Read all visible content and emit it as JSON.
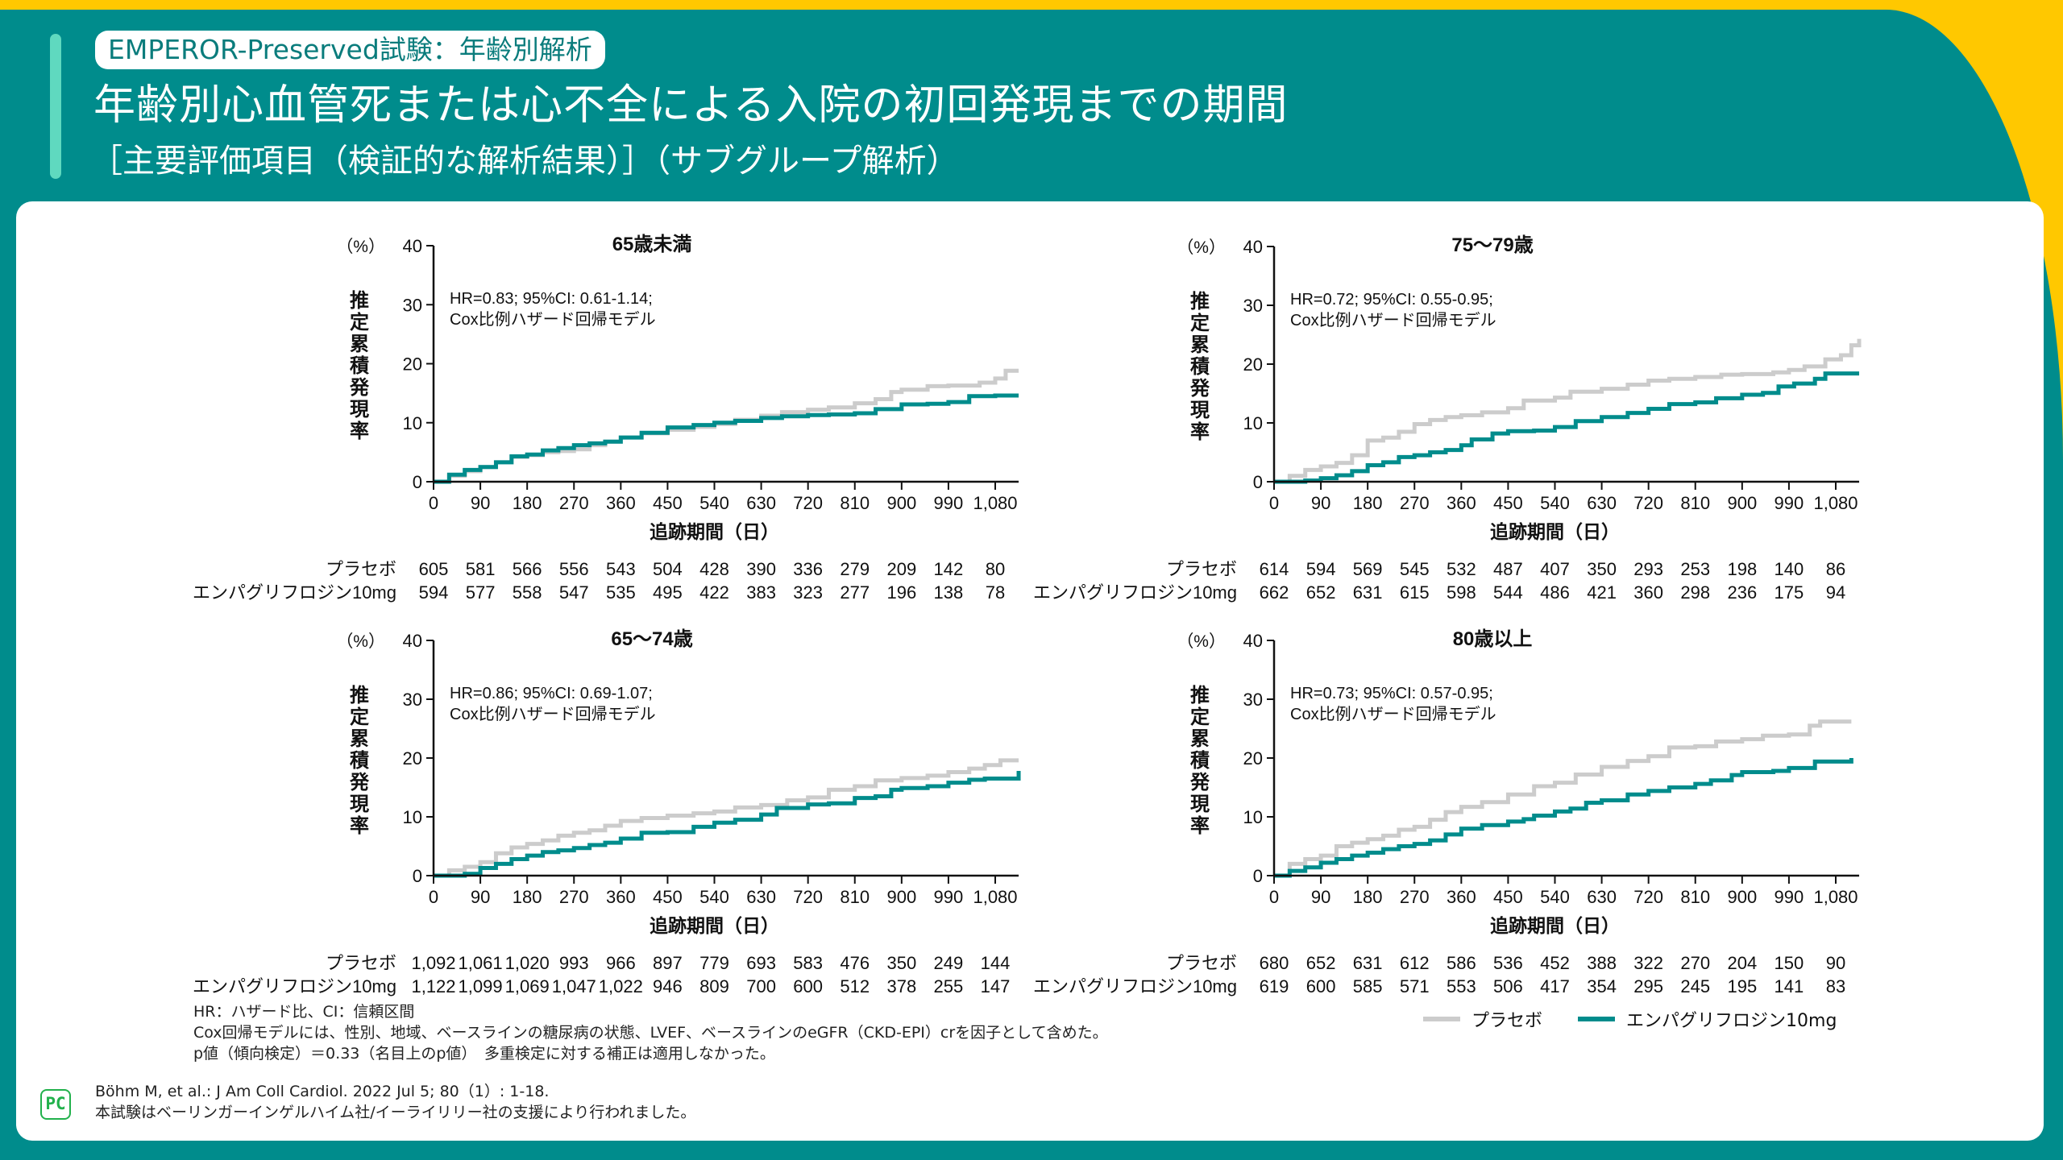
{
  "header": {
    "tag": "EMPEROR-Preserved試験：年齢別解析",
    "title": "年齢別心血管死または心不全による入院の初回発現までの期間",
    "subtitle": "［主要評価項目（検証的な解析結果）］（サブグループ解析）"
  },
  "colors": {
    "teal": "#008c8c",
    "yellow": "#ffc800",
    "placebo": "#cccccc",
    "empagliflozin": "#008c8c"
  },
  "legend": {
    "placebo": "プラセボ",
    "empagliflozin": "エンパグリフロジン10mg"
  },
  "chart_data": [
    {
      "type": "line",
      "step": true,
      "title": "65歳未満",
      "annotation": [
        "HR=0.83; 95%CI: 0.61-1.14;",
        "Cox比例ハザード回帰モデル"
      ],
      "xlabel": "追跡期間（日）",
      "ylabel": "推定累積発現率",
      "yunit": "（%）",
      "xlim": [
        0,
        1125
      ],
      "ylim": [
        0,
        40
      ],
      "xticks": [
        0,
        90,
        180,
        270,
        360,
        450,
        540,
        630,
        720,
        810,
        900,
        990,
        1080
      ],
      "xtick_labels": [
        "0",
        "90",
        "180",
        "270",
        "360",
        "450",
        "540",
        "630",
        "720",
        "810",
        "900",
        "990",
        "1,080"
      ],
      "yticks": [
        0,
        10,
        20,
        30,
        40
      ],
      "series": [
        {
          "name": "プラセボ",
          "key": "placebo",
          "x": [
            0,
            30,
            60,
            90,
            120,
            150,
            180,
            210,
            240,
            270,
            300,
            330,
            360,
            400,
            450,
            500,
            540,
            580,
            630,
            670,
            720,
            760,
            810,
            850,
            880,
            900,
            950,
            990,
            1050,
            1080,
            1100,
            1125
          ],
          "y": [
            0,
            1.0,
            1.8,
            2.5,
            3.3,
            4.2,
            4.5,
            5.0,
            5.2,
            5.5,
            6.2,
            6.8,
            7.5,
            8.2,
            8.8,
            9.3,
            9.8,
            10.5,
            11.2,
            11.8,
            12.2,
            12.6,
            13.3,
            14.0,
            15.2,
            15.6,
            16.2,
            16.3,
            16.8,
            17.5,
            18.8,
            18.8
          ]
        },
        {
          "name": "エンパグリフロジン10mg",
          "key": "empagliflozin",
          "x": [
            0,
            30,
            60,
            90,
            120,
            150,
            180,
            210,
            240,
            270,
            300,
            330,
            360,
            400,
            450,
            500,
            540,
            580,
            630,
            670,
            720,
            760,
            810,
            850,
            900,
            950,
            990,
            1030,
            1080,
            1125
          ],
          "y": [
            0,
            1.2,
            2.0,
            2.5,
            3.3,
            4.3,
            4.6,
            5.3,
            5.7,
            6.2,
            6.5,
            6.8,
            7.5,
            8.3,
            9.2,
            9.6,
            10.0,
            10.3,
            10.8,
            11.1,
            11.3,
            11.4,
            11.6,
            12.3,
            13.1,
            13.2,
            13.5,
            14.5,
            14.6,
            14.6
          ]
        }
      ],
      "risk_table": {
        "placebo": [
          "605",
          "581",
          "566",
          "556",
          "543",
          "504",
          "428",
          "390",
          "336",
          "279",
          "209",
          "142",
          "80"
        ],
        "empagliflozin": [
          "594",
          "577",
          "558",
          "547",
          "535",
          "495",
          "422",
          "383",
          "323",
          "277",
          "196",
          "138",
          "78"
        ]
      }
    },
    {
      "type": "line",
      "step": true,
      "title": "75〜79歳",
      "annotation": [
        "HR=0.72; 95%CI: 0.55-0.95;",
        "Cox比例ハザード回帰モデル"
      ],
      "xlabel": "追跡期間（日）",
      "ylabel": "推定累積発現率",
      "yunit": "（%）",
      "xlim": [
        0,
        1125
      ],
      "ylim": [
        0,
        40
      ],
      "xticks": [
        0,
        90,
        180,
        270,
        360,
        450,
        540,
        630,
        720,
        810,
        900,
        990,
        1080
      ],
      "xtick_labels": [
        "0",
        "90",
        "180",
        "270",
        "360",
        "450",
        "540",
        "630",
        "720",
        "810",
        "900",
        "990",
        "1,080"
      ],
      "yticks": [
        0,
        10,
        20,
        30,
        40
      ],
      "series": [
        {
          "name": "プラセボ",
          "key": "placebo",
          "x": [
            0,
            30,
            60,
            90,
            120,
            150,
            180,
            210,
            240,
            270,
            300,
            330,
            360,
            400,
            450,
            480,
            540,
            570,
            630,
            680,
            720,
            760,
            810,
            860,
            900,
            960,
            990,
            1020,
            1060,
            1090,
            1110,
            1125
          ],
          "y": [
            0,
            1.0,
            2.0,
            2.6,
            3.2,
            4.5,
            7.0,
            7.5,
            8.5,
            9.8,
            10.5,
            11.0,
            11.3,
            11.8,
            12.5,
            13.8,
            14.3,
            15.3,
            15.8,
            16.5,
            17.2,
            17.5,
            17.8,
            18.2,
            18.3,
            18.6,
            19.0,
            19.6,
            20.8,
            21.5,
            23.2,
            24.3
          ]
        },
        {
          "name": "エンパグリフロジン10mg",
          "key": "empagliflozin",
          "x": [
            0,
            30,
            60,
            90,
            120,
            150,
            180,
            210,
            240,
            270,
            300,
            330,
            360,
            380,
            420,
            450,
            500,
            540,
            580,
            630,
            680,
            720,
            760,
            810,
            850,
            900,
            940,
            970,
            1000,
            1040,
            1060,
            1125
          ],
          "y": [
            0,
            0,
            0.2,
            0.6,
            1.1,
            1.8,
            2.8,
            3.3,
            4.2,
            4.5,
            5.0,
            5.4,
            6.2,
            7.2,
            8.2,
            8.6,
            8.7,
            9.3,
            10.3,
            11.0,
            11.7,
            12.4,
            13.2,
            13.5,
            14.2,
            14.8,
            15.1,
            16.2,
            16.7,
            17.5,
            18.4,
            18.4
          ]
        }
      ],
      "risk_table": {
        "placebo": [
          "614",
          "594",
          "569",
          "545",
          "532",
          "487",
          "407",
          "350",
          "293",
          "253",
          "198",
          "140",
          "86"
        ],
        "empagliflozin": [
          "662",
          "652",
          "631",
          "615",
          "598",
          "544",
          "486",
          "421",
          "360",
          "298",
          "236",
          "175",
          "94"
        ]
      }
    },
    {
      "type": "line",
      "step": true,
      "title": "65〜74歳",
      "annotation": [
        "HR=0.86; 95%CI: 0.69-1.07;",
        "Cox比例ハザード回帰モデル"
      ],
      "xlabel": "追跡期間（日）",
      "ylabel": "推定累積発現率",
      "yunit": "（%）",
      "xlim": [
        0,
        1125
      ],
      "ylim": [
        0,
        40
      ],
      "xticks": [
        0,
        90,
        180,
        270,
        360,
        450,
        540,
        630,
        720,
        810,
        900,
        990,
        1080
      ],
      "xtick_labels": [
        "0",
        "90",
        "180",
        "270",
        "360",
        "450",
        "540",
        "630",
        "720",
        "810",
        "900",
        "990",
        "1,080"
      ],
      "yticks": [
        0,
        10,
        20,
        30,
        40
      ],
      "series": [
        {
          "name": "プラセボ",
          "key": "placebo",
          "x": [
            0,
            30,
            60,
            90,
            120,
            150,
            180,
            210,
            240,
            270,
            300,
            330,
            360,
            400,
            450,
            500,
            540,
            580,
            630,
            680,
            720,
            760,
            810,
            850,
            900,
            950,
            990,
            1030,
            1060,
            1090,
            1125
          ],
          "y": [
            0,
            0.9,
            1.5,
            2.3,
            3.8,
            4.8,
            5.4,
            6.0,
            6.8,
            7.3,
            7.7,
            8.5,
            9.3,
            9.8,
            10.2,
            10.6,
            10.9,
            11.6,
            12.0,
            12.8,
            13.3,
            14.6,
            15.2,
            16.2,
            16.6,
            17.0,
            17.6,
            18.2,
            18.8,
            19.6,
            19.6
          ]
        },
        {
          "name": "エンパグリフロジン10mg",
          "key": "empagliflozin",
          "x": [
            0,
            30,
            60,
            90,
            120,
            150,
            180,
            210,
            240,
            270,
            300,
            330,
            360,
            400,
            450,
            500,
            540,
            580,
            630,
            660,
            720,
            760,
            810,
            850,
            880,
            900,
            950,
            990,
            1030,
            1060,
            1110,
            1125
          ],
          "y": [
            0,
            0,
            0.3,
            1.3,
            2.0,
            2.8,
            3.4,
            4.0,
            4.3,
            4.7,
            5.2,
            5.6,
            6.3,
            7.3,
            7.4,
            8.3,
            9.0,
            9.5,
            10.4,
            11.5,
            12.1,
            12.3,
            13.2,
            13.5,
            14.6,
            14.9,
            15.2,
            15.8,
            16.3,
            16.5,
            16.5,
            17.8
          ]
        }
      ],
      "risk_table": {
        "placebo": [
          "1,092",
          "1,061",
          "1,020",
          "993",
          "966",
          "897",
          "779",
          "693",
          "583",
          "476",
          "350",
          "249",
          "144"
        ],
        "empagliflozin": [
          "1,122",
          "1,099",
          "1,069",
          "1,047",
          "1,022",
          "946",
          "809",
          "700",
          "600",
          "512",
          "378",
          "255",
          "147"
        ]
      }
    },
    {
      "type": "line",
      "step": true,
      "title": "80歳以上",
      "annotation": [
        "HR=0.73; 95%CI: 0.57-0.95;",
        "Cox比例ハザード回帰モデル"
      ],
      "xlabel": "追跡期間（日）",
      "ylabel": "推定累積発現率",
      "yunit": "（%）",
      "xlim": [
        0,
        1125
      ],
      "ylim": [
        0,
        40
      ],
      "xticks": [
        0,
        90,
        180,
        270,
        360,
        450,
        540,
        630,
        720,
        810,
        900,
        990,
        1080
      ],
      "xtick_labels": [
        "0",
        "90",
        "180",
        "270",
        "360",
        "450",
        "540",
        "630",
        "720",
        "810",
        "900",
        "990",
        "1,080"
      ],
      "yticks": [
        0,
        10,
        20,
        30,
        40
      ],
      "series": [
        {
          "name": "プラセボ",
          "key": "placebo",
          "x": [
            0,
            30,
            60,
            90,
            120,
            150,
            180,
            210,
            240,
            270,
            300,
            330,
            360,
            400,
            450,
            500,
            540,
            580,
            630,
            680,
            720,
            760,
            810,
            850,
            900,
            940,
            990,
            1030,
            1050,
            1110
          ],
          "y": [
            0,
            2.0,
            2.8,
            3.4,
            5.0,
            5.6,
            6.2,
            6.8,
            7.8,
            8.3,
            9.5,
            10.8,
            11.7,
            12.5,
            13.8,
            15.2,
            15.8,
            17.2,
            18.5,
            19.5,
            20.3,
            21.8,
            22.0,
            22.8,
            23.2,
            23.8,
            24.0,
            25.5,
            26.2,
            26.2
          ]
        },
        {
          "name": "エンパグリフロジン10mg",
          "key": "empagliflozin",
          "x": [
            0,
            30,
            60,
            90,
            120,
            150,
            180,
            210,
            240,
            270,
            300,
            330,
            360,
            400,
            450,
            480,
            500,
            540,
            570,
            600,
            630,
            680,
            720,
            760,
            810,
            840,
            880,
            900,
            960,
            990,
            1040,
            1110
          ],
          "y": [
            0,
            0.8,
            1.4,
            2.2,
            2.8,
            3.4,
            3.9,
            4.5,
            5.0,
            5.4,
            6.0,
            7.0,
            8.0,
            8.6,
            9.2,
            9.6,
            10.2,
            10.9,
            11.4,
            12.4,
            12.8,
            13.8,
            14.4,
            15.0,
            15.6,
            16.2,
            17.1,
            17.6,
            17.8,
            18.3,
            19.4,
            20.0
          ]
        }
      ],
      "risk_table": {
        "placebo": [
          "680",
          "652",
          "631",
          "612",
          "586",
          "536",
          "452",
          "388",
          "322",
          "270",
          "204",
          "150",
          "90"
        ],
        "empagliflozin": [
          "619",
          "600",
          "585",
          "571",
          "553",
          "506",
          "417",
          "354",
          "295",
          "245",
          "195",
          "141",
          "83"
        ]
      }
    }
  ],
  "risk_labels": {
    "placebo": "プラセボ",
    "empagliflozin": "エンパグリフロジン10mg"
  },
  "notes": [
    "HR：ハザード比、CI：信頼区間",
    "Cox回帰モデルには、性別、地域、ベースラインの糖尿病の状態、LVEF、ベースラインのeGFR（CKD-EPI）crを因子として含めた。",
    "p値（傾向検定）＝0.33（名目上のp値）　多重検定に対する補正は適用しなかった。"
  ],
  "references": [
    "Böhm M, et al.: J Am Coll Cardiol. 2022 Jul 5; 80（1）: 1-18.",
    "本試験はベーリンガーインゲルハイム社/イーライリリー社の支援により行われました。"
  ],
  "logo": {
    "text": "PC"
  }
}
